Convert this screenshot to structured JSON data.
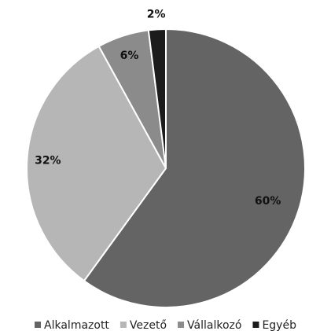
{
  "chart_data": {
    "type": "pie",
    "categories": [
      "Alkalmazott",
      "Vezető",
      "Vállalkozó",
      "Egyéb"
    ],
    "values": [
      60,
      32,
      6,
      2
    ],
    "value_labels": [
      "60%",
      "32%",
      "6%",
      "2%"
    ],
    "colors": [
      "#646464",
      "#b6b6b6",
      "#8b8b8b",
      "#1c1c1c"
    ],
    "legend": "bottom"
  }
}
